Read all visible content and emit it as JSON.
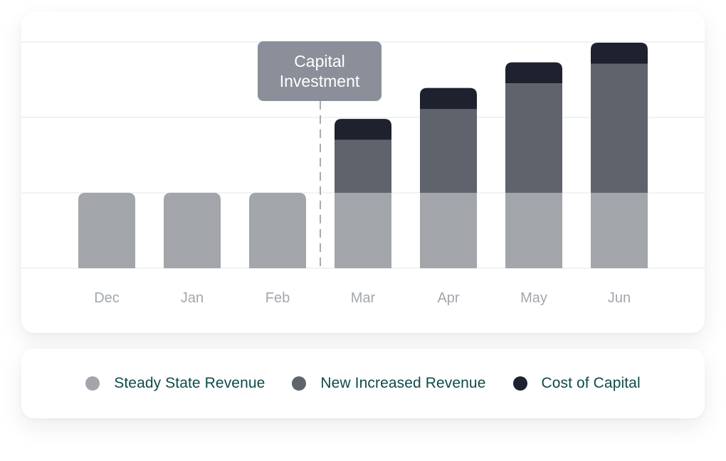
{
  "chart_data": {
    "type": "bar",
    "stacked": true,
    "categories": [
      "Dec",
      "Jan",
      "Feb",
      "Mar",
      "Apr",
      "May",
      "Jun"
    ],
    "series": [
      {
        "name": "Steady State Revenue",
        "color": "#a2a5aa",
        "values": [
          1,
          1,
          1,
          1,
          1,
          1,
          1
        ]
      },
      {
        "name": "New Increased Revenue",
        "color": "#5f636c",
        "values": [
          0,
          0,
          0,
          0.7,
          1.11,
          1.45,
          1.71
        ]
      },
      {
        "name": "Cost of Capital",
        "color": "#1d222e",
        "values": [
          0,
          0,
          0,
          0.28,
          0.28,
          0.28,
          0.28
        ]
      }
    ],
    "ylim": [
      0,
      3
    ],
    "grid": true,
    "annotation": {
      "label_line1": "Capital",
      "label_line2": "Investment",
      "between": [
        "Feb",
        "Mar"
      ]
    },
    "legend_position": "bottom"
  }
}
